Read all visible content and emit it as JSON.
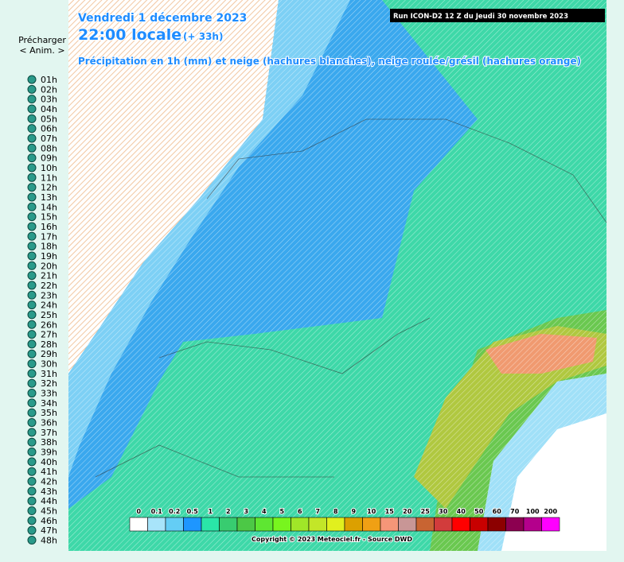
{
  "sidebar": {
    "preload": "Précharger",
    "anim": "< Anim. >",
    "hours": [
      "01h",
      "02h",
      "03h",
      "04h",
      "05h",
      "06h",
      "07h",
      "08h",
      "09h",
      "10h",
      "11h",
      "12h",
      "13h",
      "14h",
      "15h",
      "16h",
      "17h",
      "18h",
      "19h",
      "20h",
      "21h",
      "22h",
      "23h",
      "24h",
      "25h",
      "26h",
      "27h",
      "28h",
      "29h",
      "30h",
      "31h",
      "32h",
      "33h",
      "34h",
      "35h",
      "36h",
      "37h",
      "38h",
      "39h",
      "40h",
      "41h",
      "42h",
      "43h",
      "44h",
      "45h",
      "46h",
      "47h",
      "48h"
    ]
  },
  "header": {
    "date": "Vendredi 1 décembre 2023",
    "time": "22:00 locale",
    "offset": "(+ 33h)",
    "description": "Précipitation en 1h (mm) et neige (hachures blanches), neige roulée/grésil (hachures orange)",
    "run": "Run ICON-D2 12 Z du Jeudi 30 novembre 2023"
  },
  "legend": {
    "items": [
      {
        "label": "0",
        "color": "#ffffff"
      },
      {
        "label": "0.1",
        "color": "#a8e4fa"
      },
      {
        "label": "0.2",
        "color": "#64cdf5"
      },
      {
        "label": "0.5",
        "color": "#1e96ff"
      },
      {
        "label": "1",
        "color": "#2ae6a8"
      },
      {
        "label": "2",
        "color": "#38cc70"
      },
      {
        "label": "3",
        "color": "#4cc846"
      },
      {
        "label": "4",
        "color": "#5ee632"
      },
      {
        "label": "5",
        "color": "#78f51e"
      },
      {
        "label": "6",
        "color": "#a0e628"
      },
      {
        "label": "7",
        "color": "#c3e628"
      },
      {
        "label": "8",
        "color": "#e1f01e"
      },
      {
        "label": "9",
        "color": "#dca000"
      },
      {
        "label": "10",
        "color": "#f0a014"
      },
      {
        "label": "15",
        "color": "#f59678"
      },
      {
        "label": "20",
        "color": "#c89696"
      },
      {
        "label": "25",
        "color": "#c86432"
      },
      {
        "label": "30",
        "color": "#d23c3c"
      },
      {
        "label": "40",
        "color": "#ff0000"
      },
      {
        "label": "50",
        "color": "#c80000"
      },
      {
        "label": "60",
        "color": "#8c0000"
      },
      {
        "label": "70",
        "color": "#8c0050"
      },
      {
        "label": "100",
        "color": "#b4008c"
      },
      {
        "label": "200",
        "color": "#ff00ff"
      }
    ]
  },
  "footer": {
    "copyright": "Copyright © 2023 Meteociel.fr - Source DWD"
  }
}
